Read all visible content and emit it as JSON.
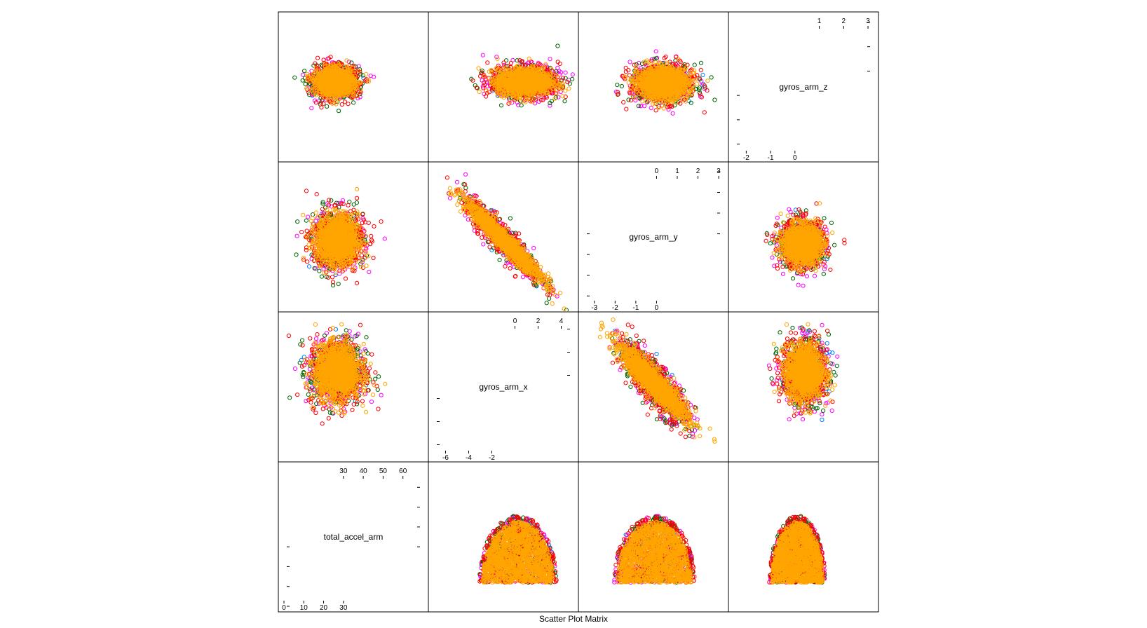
{
  "chart_data": {
    "type": "scatter",
    "subtype": "scatter-plot-matrix",
    "title": "",
    "xlabel": "Scatter Plot Matrix",
    "ylabel": "",
    "variables": [
      {
        "name": "total_accel_arm",
        "range": [
          0,
          70
        ],
        "ticks_low": [
          0,
          10,
          20,
          30
        ],
        "ticks_high": [
          30,
          40,
          50,
          60
        ]
      },
      {
        "name": "gyros_arm_x",
        "range": [
          -7,
          5
        ],
        "ticks_low": [
          -6,
          -4,
          -2
        ],
        "ticks_high": [
          0,
          2,
          4
        ]
      },
      {
        "name": "gyros_arm_y",
        "range": [
          -3.5,
          3.2
        ],
        "ticks_low": [
          -3,
          -2,
          -1,
          0
        ],
        "ticks_high": [
          0,
          1,
          2,
          3
        ]
      },
      {
        "name": "gyros_arm_z",
        "range": [
          -2.5,
          3.2
        ],
        "ticks_low": [
          -2,
          -1,
          0
        ],
        "ticks_high": [
          1,
          2,
          3
        ]
      }
    ],
    "series": [
      {
        "color": "#0080ff"
      },
      {
        "color": "#ff00ff"
      },
      {
        "color": "#006400"
      },
      {
        "color": "#ff0000"
      },
      {
        "color": "#ffa500"
      }
    ],
    "panel_shapes": {
      "gyros_arm_x|total_accel_arm": {
        "shape": "dome",
        "cx": 0.25,
        "cy": 20,
        "sx": 2.9,
        "sy": 14
      },
      "gyros_arm_y|total_accel_arm": {
        "shape": "dome",
        "cx": -0.1,
        "cy": 20,
        "sx": 1.7,
        "sy": 14
      },
      "gyros_arm_z|total_accel_arm": {
        "shape": "dome",
        "cx": 0.1,
        "cy": 20,
        "sx": 1.0,
        "sy": 14
      },
      "total_accel_arm|gyros_arm_x": {
        "shape": "blob",
        "cx": 27,
        "cy": 0.3,
        "sx": 12,
        "sy": 3.0
      },
      "gyros_arm_y|gyros_arm_x": {
        "shape": "diagonal",
        "slope": -1.75,
        "intercept": -0.6,
        "spread": 0.9,
        "xspread": 1.5
      },
      "gyros_arm_z|gyros_arm_x": {
        "shape": "blob",
        "cx": 0.4,
        "cy": 0.3,
        "sx": 0.8,
        "sy": 3.0
      },
      "total_accel_arm|gyros_arm_y": {
        "shape": "blob",
        "cx": 27,
        "cy": -0.3,
        "sx": 11,
        "sy": 1.5
      },
      "gyros_arm_x|gyros_arm_y": {
        "shape": "diagonal",
        "slope": -0.55,
        "intercept": -0.3,
        "spread": 0.35,
        "xspread": 3.0
      },
      "gyros_arm_z|gyros_arm_y": {
        "shape": "blob",
        "cx": 0.3,
        "cy": -0.5,
        "sx": 0.8,
        "sy": 1.2
      },
      "total_accel_arm|gyros_arm_z": {
        "shape": "blob",
        "cx": 26,
        "cy": 0.55,
        "sx": 10,
        "sy": 0.7
      },
      "gyros_arm_x|gyros_arm_z": {
        "shape": "blob",
        "cx": 0.8,
        "cy": 0.55,
        "sx": 2.5,
        "sy": 0.7
      },
      "gyros_arm_y|gyros_arm_z": {
        "shape": "blob",
        "cx": 0.3,
        "cy": 0.5,
        "sx": 1.3,
        "sy": 0.8
      }
    }
  }
}
